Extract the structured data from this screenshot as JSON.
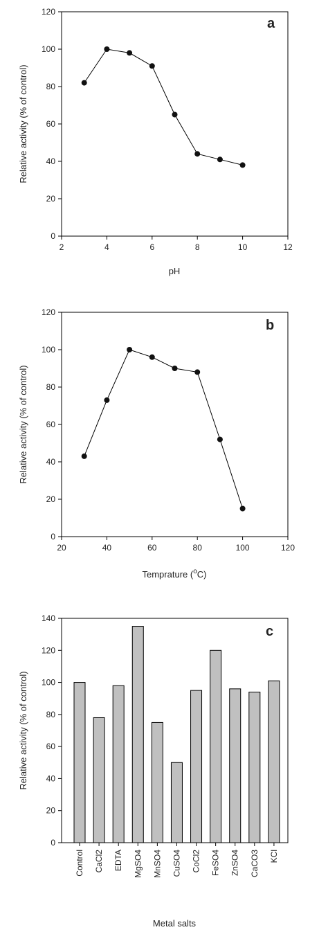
{
  "colors": {
    "axis": "#000000",
    "marker": "#111111",
    "bar_fill": "#c0c0c0",
    "bar_stroke": "#000000"
  },
  "chart_data": [
    {
      "type": "line",
      "panel_label": "a",
      "xlabel": "pH",
      "ylabel": "Relative activity (% of control)",
      "xlim": [
        2,
        12
      ],
      "ylim": [
        0,
        120
      ],
      "xticks": [
        2,
        4,
        6,
        8,
        10,
        12
      ],
      "yticks": [
        0,
        20,
        40,
        60,
        80,
        100,
        120
      ],
      "grid": false,
      "x": [
        3,
        4,
        5,
        6,
        7,
        8,
        9,
        10
      ],
      "y": [
        82,
        100,
        98,
        91,
        65,
        44,
        41,
        38
      ]
    },
    {
      "type": "line",
      "panel_label": "b",
      "xlabel": "Temprature (",
      "xlabel_unit": "C)",
      "xlabel_degree": "o",
      "ylabel": "Relative activity (% of control)",
      "xlim": [
        20,
        120
      ],
      "ylim": [
        0,
        120
      ],
      "xticks": [
        20,
        40,
        60,
        80,
        100,
        120
      ],
      "yticks": [
        0,
        20,
        40,
        60,
        80,
        100,
        120
      ],
      "grid": false,
      "x": [
        30,
        40,
        50,
        60,
        70,
        80,
        90,
        100
      ],
      "y": [
        43,
        73,
        100,
        96,
        90,
        88,
        52,
        15
      ]
    },
    {
      "type": "bar",
      "panel_label": "c",
      "xlabel": "Metal salts",
      "ylabel": "Relative activity (% of control)",
      "ylim": [
        0,
        140
      ],
      "yticks": [
        0,
        20,
        40,
        60,
        80,
        100,
        120,
        140
      ],
      "grid": false,
      "categories": [
        "Control",
        "CaCl2",
        "EDTA",
        "MgSO4",
        "MnSO4",
        "CuSO4",
        "CoCl2",
        "FeSO4",
        "ZnSO4",
        "CaCO3",
        "KCl"
      ],
      "values": [
        100,
        78,
        98,
        135,
        75,
        50,
        95,
        120,
        96,
        94,
        101
      ]
    }
  ]
}
